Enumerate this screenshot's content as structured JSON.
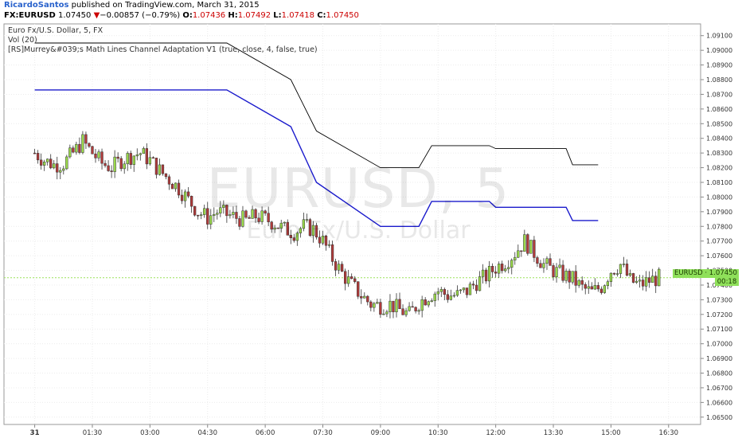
{
  "header": {
    "author": "RicardoSantos",
    "published": " published on TradingView.com, March 31, 2015",
    "symbol": "FX:EURUSD",
    "last": "1.07450",
    "change": "−0.00857 (−0.79%)",
    "o_label": "O:",
    "o_val": "1.07436",
    "h_label": "H:",
    "h_val": "1.07492",
    "l_label": "L:",
    "l_val": "1.07418",
    "c_label": "C:",
    "c_val": "1.07450"
  },
  "legend": {
    "line1": "Euro Fx/U.S. Dollar, 5, FX",
    "line2": "Vol (20)",
    "line3": "[RS]Murrey&#039;s Math Lines Channel Adaptation V1 (true, close, 4, false, true)"
  },
  "watermark": {
    "line1": "EURUSD, 5",
    "line2": "Euro Fx/U.S. Dollar"
  },
  "price_tag": "EURUSD · 1.07450",
  "countdown": "00:18",
  "colors": {
    "up": "#9ad94a",
    "down": "#b03a3a",
    "blue": "#1a1acc",
    "black": "#000000",
    "grey": "#8c8c8c"
  },
  "chart_data": {
    "type": "candlestick",
    "ylim": [
      1.0645,
      1.0918
    ],
    "yticks": [
      "1.06500",
      "1.06600",
      "1.06700",
      "1.06800",
      "1.06900",
      "1.07000",
      "1.07100",
      "1.07200",
      "1.07300",
      "1.07400",
      "1.07500",
      "1.07600",
      "1.07700",
      "1.07800",
      "1.07900",
      "1.08000",
      "1.08100",
      "1.08200",
      "1.08300",
      "1.08400",
      "1.08500",
      "1.08600",
      "1.08700",
      "1.08800",
      "1.08900",
      "1.09000",
      "1.09100"
    ],
    "xticks": [
      {
        "label": "31",
        "t": 0
      },
      {
        "label": "01:30",
        "t": 90
      },
      {
        "label": "03:00",
        "t": 180
      },
      {
        "label": "04:30",
        "t": 270
      },
      {
        "label": "06:00",
        "t": 360
      },
      {
        "label": "07:30",
        "t": 450
      },
      {
        "label": "09:00",
        "t": 540
      },
      {
        "label": "10:30",
        "t": 630
      },
      {
        "label": "12:00",
        "t": 720
      },
      {
        "label": "13:30",
        "t": 810
      },
      {
        "label": "15:00",
        "t": 900
      },
      {
        "label": "16:30",
        "t": 990
      }
    ],
    "xlim": [
      -48,
      1040
    ],
    "close_anchors": [
      [
        0,
        1.083
      ],
      [
        15,
        1.0825
      ],
      [
        30,
        1.0822
      ],
      [
        45,
        1.0823
      ],
      [
        60,
        1.083
      ],
      [
        75,
        1.0838
      ],
      [
        90,
        1.083
      ],
      [
        105,
        1.0823
      ],
      [
        120,
        1.082
      ],
      [
        135,
        1.0825
      ],
      [
        150,
        1.0828
      ],
      [
        165,
        1.083
      ],
      [
        180,
        1.0825
      ],
      [
        195,
        1.0818
      ],
      [
        210,
        1.0812
      ],
      [
        225,
        1.0806
      ],
      [
        240,
        1.0798
      ],
      [
        255,
        1.079
      ],
      [
        270,
        1.0786
      ],
      [
        285,
        1.079
      ],
      [
        300,
        1.0788
      ],
      [
        315,
        1.0786
      ],
      [
        330,
        1.0784
      ],
      [
        345,
        1.0787
      ],
      [
        360,
        1.0785
      ],
      [
        375,
        1.0782
      ],
      [
        390,
        1.0778
      ],
      [
        405,
        1.0776
      ],
      [
        420,
        1.078
      ],
      [
        435,
        1.0778
      ],
      [
        450,
        1.077
      ],
      [
        465,
        1.0758
      ],
      [
        480,
        1.0748
      ],
      [
        495,
        1.074
      ],
      [
        510,
        1.0733
      ],
      [
        525,
        1.0727
      ],
      [
        540,
        1.0726
      ],
      [
        555,
        1.0727
      ],
      [
        570,
        1.0723
      ],
      [
        585,
        1.072
      ],
      [
        600,
        1.0728
      ],
      [
        615,
        1.0733
      ],
      [
        630,
        1.0736
      ],
      [
        645,
        1.0733
      ],
      [
        660,
        1.0733
      ],
      [
        675,
        1.0736
      ],
      [
        690,
        1.0742
      ],
      [
        705,
        1.0746
      ],
      [
        720,
        1.0752
      ],
      [
        735,
        1.0756
      ],
      [
        750,
        1.0762
      ],
      [
        765,
        1.077
      ],
      [
        780,
        1.0762
      ],
      [
        795,
        1.0754
      ],
      [
        810,
        1.075
      ],
      [
        825,
        1.0747
      ],
      [
        840,
        1.0744
      ],
      [
        855,
        1.0738
      ],
      [
        870,
        1.0735
      ],
      [
        885,
        1.0739
      ],
      [
        900,
        1.075
      ],
      [
        915,
        1.0754
      ],
      [
        930,
        1.0743
      ],
      [
        945,
        1.074
      ],
      [
        960,
        1.0743
      ],
      [
        975,
        1.0745
      ]
    ],
    "candle_step": 5,
    "candle_end": 975,
    "murrey_levels": [
      {
        "color": "black",
        "width": 0.9,
        "points": [
          [
            0,
            1.0905
          ],
          [
            300,
            1.0905
          ],
          [
            400,
            1.088
          ],
          [
            440,
            1.0845
          ],
          [
            540,
            1.082
          ],
          [
            600,
            1.082
          ],
          [
            620,
            1.0835
          ],
          [
            710,
            1.0835
          ],
          [
            720,
            1.0833
          ],
          [
            830,
            1.0833
          ],
          [
            840,
            1.0822
          ],
          [
            880,
            1.0822
          ]
        ]
      },
      {
        "color": "blue",
        "width": 1.4,
        "points": [
          [
            0,
            1.0873
          ],
          [
            300,
            1.0873
          ],
          [
            400,
            1.0848
          ],
          [
            440,
            1.081
          ],
          [
            540,
            1.078
          ],
          [
            600,
            1.078
          ],
          [
            620,
            1.0797
          ],
          [
            710,
            1.0797
          ],
          [
            720,
            1.0793
          ],
          [
            830,
            1.0793
          ],
          [
            840,
            1.0784
          ],
          [
            880,
            1.0784
          ]
        ]
      }
    ]
  }
}
